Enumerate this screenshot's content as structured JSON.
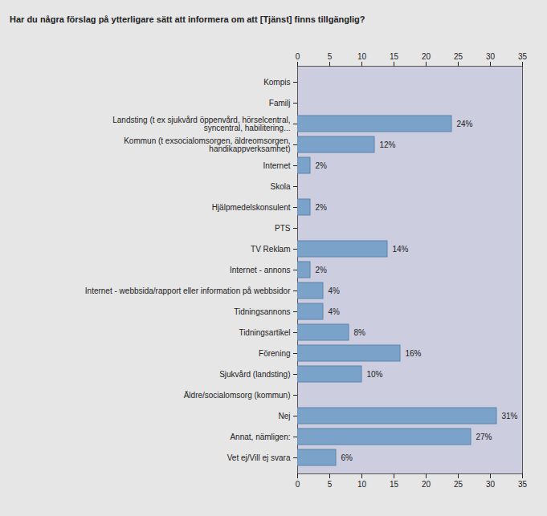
{
  "chart_data": {
    "type": "bar",
    "orientation": "horizontal",
    "title": "Har du några förslag på ytterligare sätt att informera om att [Tjänst] finns tillgänglig?",
    "categories": [
      "Kompis",
      "Familj",
      "Landsting (t ex sjukvård öppenvård, hörselcentral, syncentral, habilitering...",
      "Kommun (t exsocialomsorgen, äldreomsorgen, handikappverksamhet)",
      "Internet",
      "Skola",
      "Hjälpmedelskonsulent",
      "PTS",
      "TV Reklam",
      "Internet - annons",
      "Internet - webbsida/rapport eller information på webbsidor",
      "Tidningsannons",
      "Tidningsartikel",
      "Förening",
      "Sjukvård (landsting)",
      "Äldre/socialomsorg (kommun)",
      "Nej",
      "Annat, nämligen:",
      "Vet ej/Vill ej svara"
    ],
    "values": [
      0,
      0,
      24,
      12,
      2,
      0,
      2,
      0,
      14,
      2,
      4,
      4,
      8,
      16,
      10,
      0,
      31,
      27,
      6
    ],
    "value_labels": [
      null,
      null,
      "24%",
      "12%",
      "2%",
      null,
      "2%",
      null,
      "14%",
      "2%",
      "4%",
      "4%",
      "8%",
      "16%",
      "10%",
      null,
      "31%",
      "27%",
      "6%"
    ],
    "data_labels": true,
    "color": "#7ba3c9",
    "xlim": [
      0,
      35
    ],
    "xticks": [
      0,
      5,
      10,
      15,
      20,
      25,
      30,
      35
    ]
  }
}
